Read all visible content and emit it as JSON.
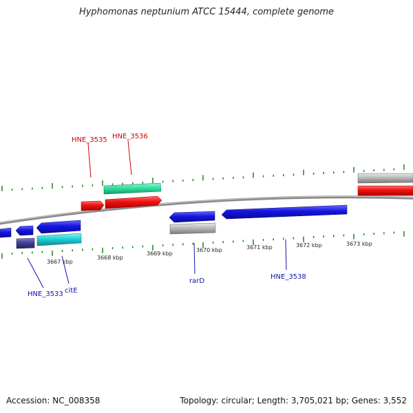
{
  "title": "Hyphomonas neptunium ATCC 15444, complete genome",
  "footer": {
    "accession": "Accession: NC_008358",
    "summary": "Topology: circular; Length: 3,705,021 bp; Genes: 3,552"
  },
  "colors": {
    "forward_gene": "#ee1111",
    "forward_gene_alt": "#33e0a0",
    "reverse_gene": "#1515e0",
    "reverse_gene_alt": "#20d0d8",
    "pseudo_gene": "#b8b8b8",
    "dark_gene": "#404090",
    "backbone": "#8a8a8a",
    "tick": "#2a8a2a",
    "label_forward": "#cc0000",
    "label_reverse": "#1010aa"
  },
  "scale_labels": [
    "3667 kbp",
    "3668 kbp",
    "3669 kbp",
    "3670 kbp",
    "3671 kbp",
    "3672 kbp",
    "3673 kbp"
  ],
  "gene_labels": {
    "forward": [
      "HNE_3535",
      "HNE_3536"
    ],
    "reverse": [
      "HNE_3533",
      "citE",
      "rarD",
      "HNE_3538"
    ]
  }
}
